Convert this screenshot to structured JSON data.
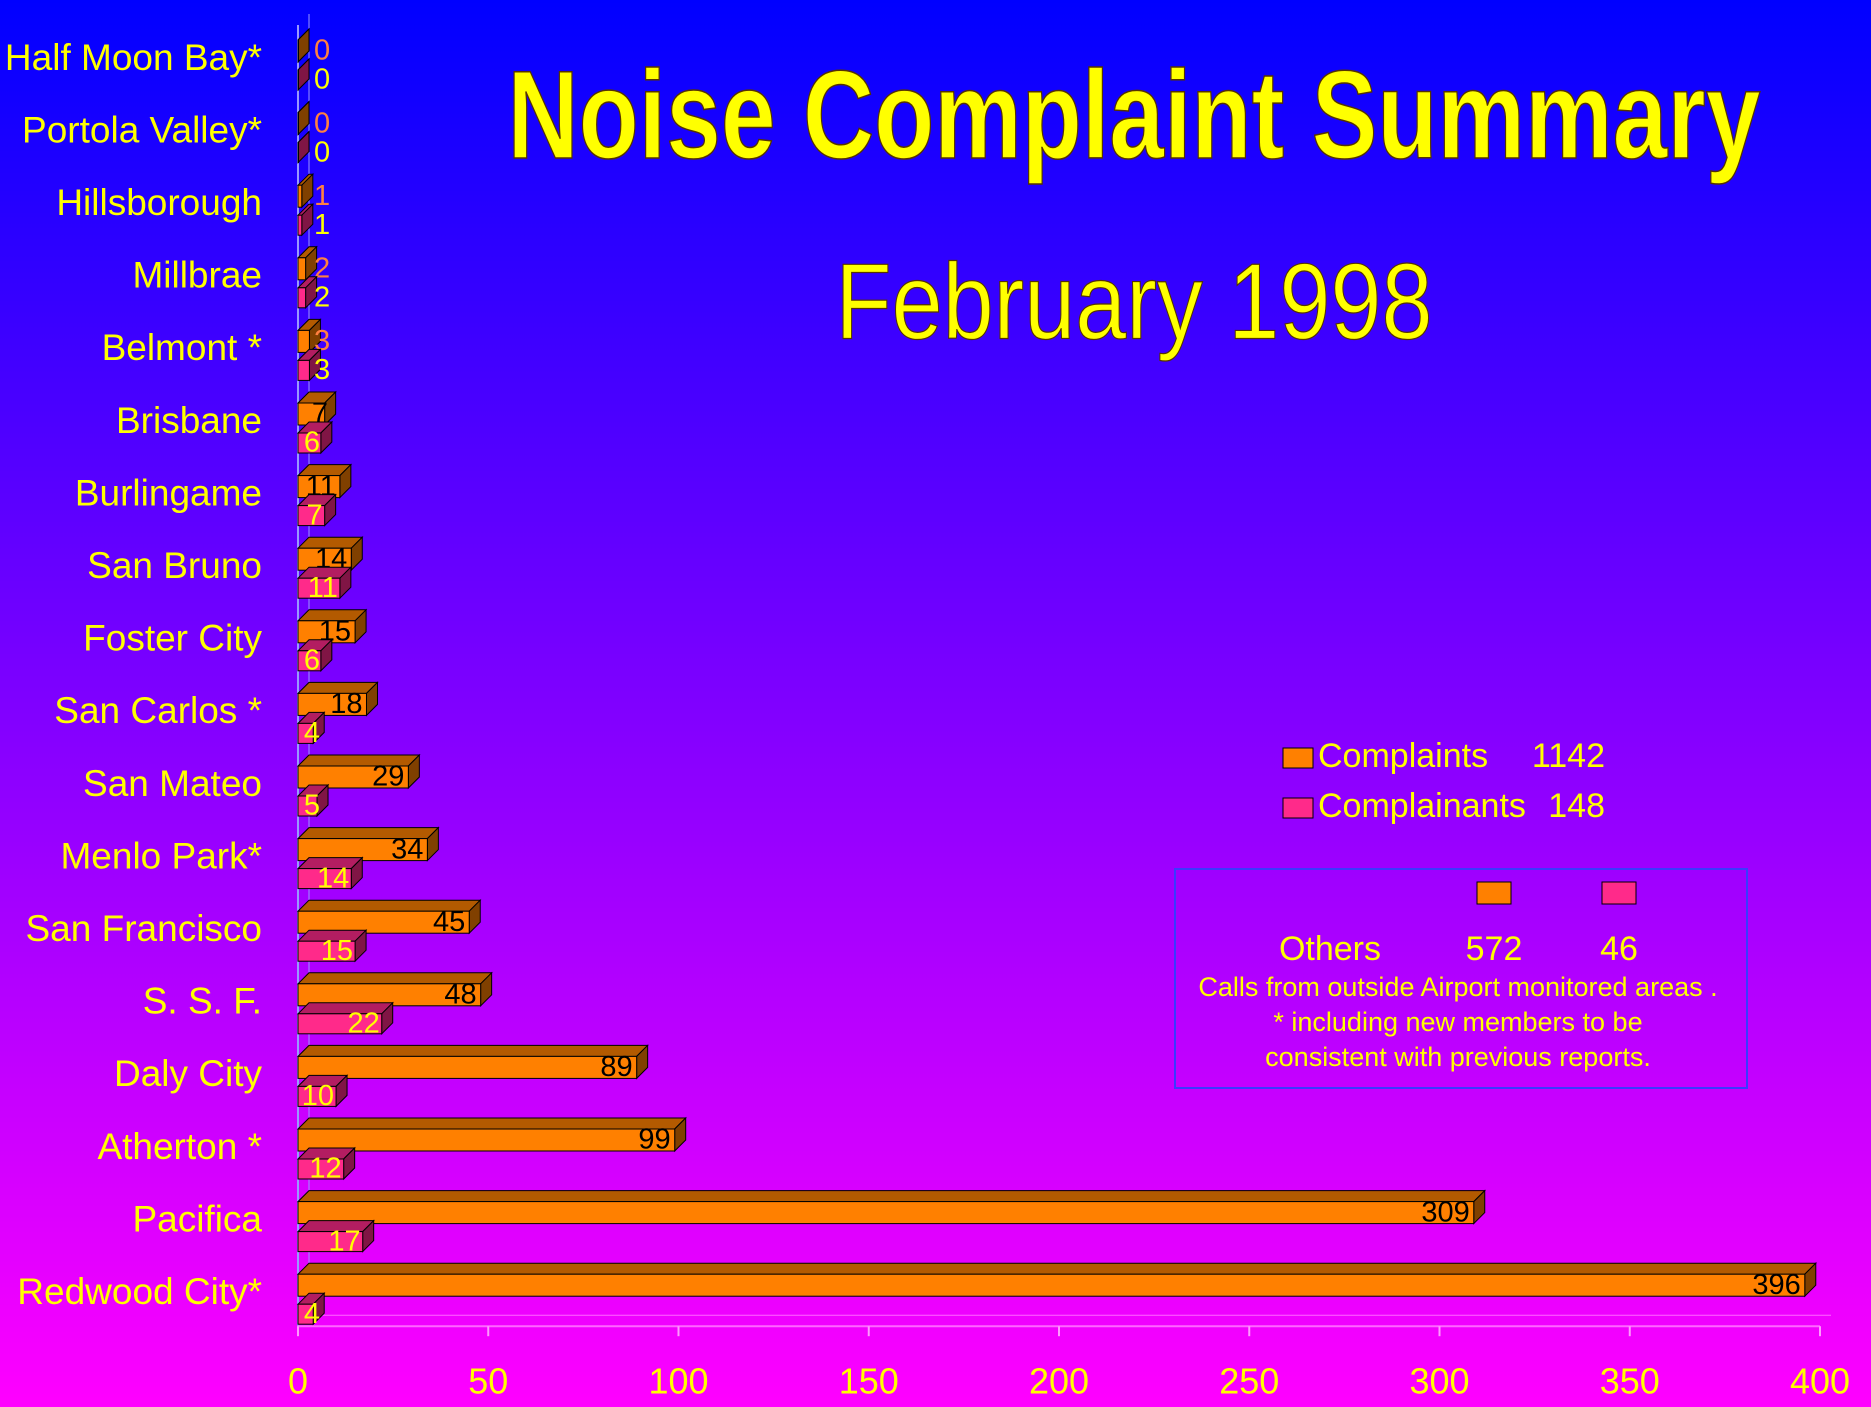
{
  "chart_data": {
    "type": "bar",
    "orientation": "horizontal",
    "title": "Noise Complaint Summary",
    "subtitle": "February 1998",
    "categories": [
      "Half Moon Bay*",
      "Portola Valley*",
      "Hillsborough",
      "Millbrae",
      "Belmont *",
      "Brisbane",
      "Burlingame",
      "San Bruno",
      "Foster City",
      "San Carlos *",
      "San Mateo",
      "Menlo Park*",
      "San Francisco",
      "S. S. F.",
      "Daly City",
      "Atherton *",
      "Pacifica",
      "Redwood City*"
    ],
    "series": [
      {
        "name": "Complaints",
        "total": 1142,
        "color": "#ff8000",
        "values": [
          0,
          0,
          1,
          2,
          3,
          7,
          11,
          14,
          15,
          18,
          29,
          34,
          45,
          48,
          89,
          99,
          309,
          396
        ]
      },
      {
        "name": "Complainants",
        "total": 148,
        "color": "#ff2a8a",
        "values": [
          0,
          0,
          1,
          2,
          3,
          6,
          7,
          11,
          6,
          4,
          5,
          14,
          15,
          22,
          10,
          12,
          17,
          4
        ]
      }
    ],
    "xlim": [
      0,
      400
    ],
    "xticks": [
      0,
      50,
      100,
      150,
      200,
      250,
      300,
      350,
      400
    ],
    "others": {
      "label": "Others",
      "values": [
        572,
        46
      ],
      "notes": [
        "Calls from outside Airport monitored areas .",
        "* including new members to be",
        "consistent with previous reports."
      ]
    }
  }
}
